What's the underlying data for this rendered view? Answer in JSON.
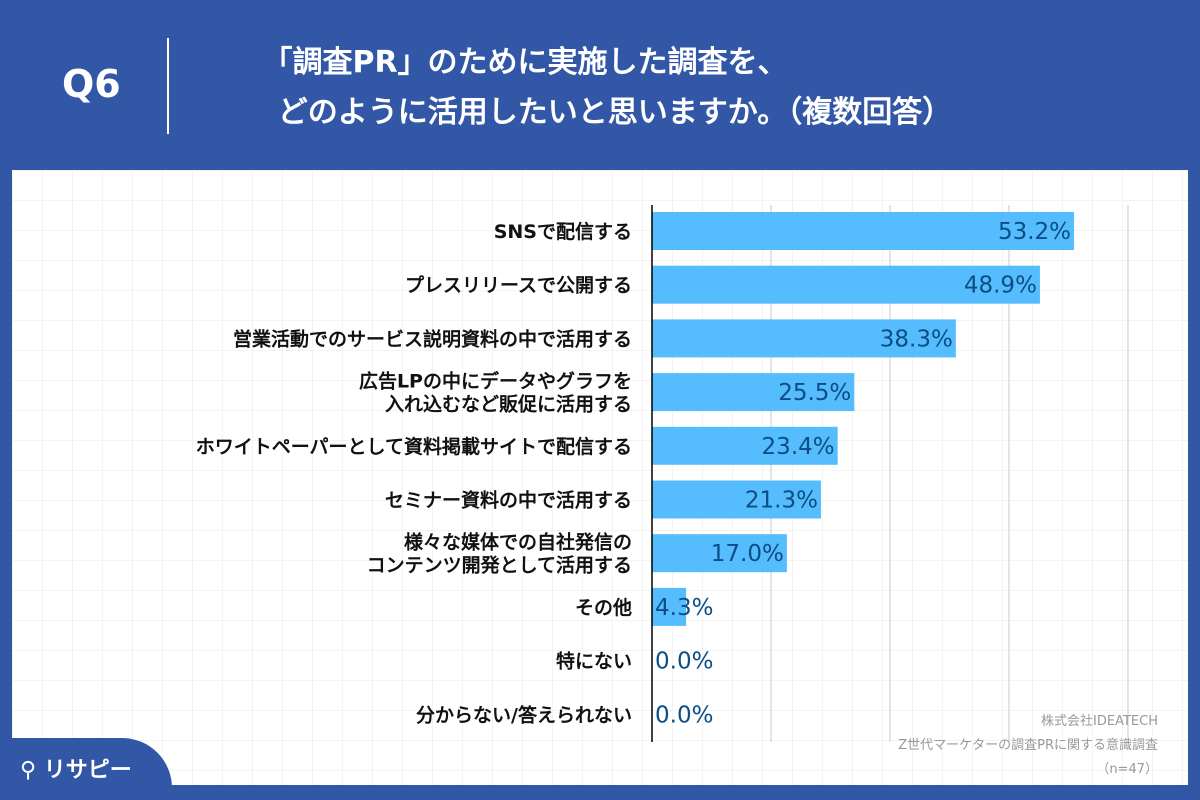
{
  "header": {
    "q": "Q6",
    "title_line1": "「調査PR」のために実施した調査を、",
    "title_line2": "どのように活用したいと思いますか。（複数回答）"
  },
  "source": {
    "company": "株式会社IDEATECH",
    "survey": "Z世代マーケターの調査PRに関する意識調査",
    "n": "（n=47）"
  },
  "logo": {
    "text": "リサピー"
  },
  "colors": {
    "bar": "#55bdfd",
    "value": "#0b4d84",
    "header": "#3357a7"
  },
  "chart_data": {
    "type": "bar",
    "orientation": "horizontal",
    "xlim": [
      0,
      60
    ],
    "grid": true,
    "gridlines": [
      15,
      30,
      45,
      60
    ],
    "categories": [
      [
        "SNSで配信する"
      ],
      [
        "プレスリリースで公開する"
      ],
      [
        "営業活動でのサービス説明資料の中で活用する"
      ],
      [
        "広告LPの中にデータやグラフを",
        "入れ込むなど販促に活用する"
      ],
      [
        "ホワイトペーパーとして資料掲載サイトで配信する"
      ],
      [
        "セミナー資料の中で活用する"
      ],
      [
        "様々な媒体での自社発信の",
        "コンテンツ開発として活用する"
      ],
      [
        "その他"
      ],
      [
        "特にない"
      ],
      [
        "分からない/答えられない"
      ]
    ],
    "values": [
      53.2,
      48.9,
      38.3,
      25.5,
      23.4,
      21.3,
      17.0,
      4.3,
      0.0,
      0.0
    ],
    "value_labels": [
      "53.2%",
      "48.9%",
      "38.3%",
      "25.5%",
      "23.4%",
      "21.3%",
      "17.0%",
      "4.3%",
      "0.0%",
      "0.0%"
    ]
  }
}
